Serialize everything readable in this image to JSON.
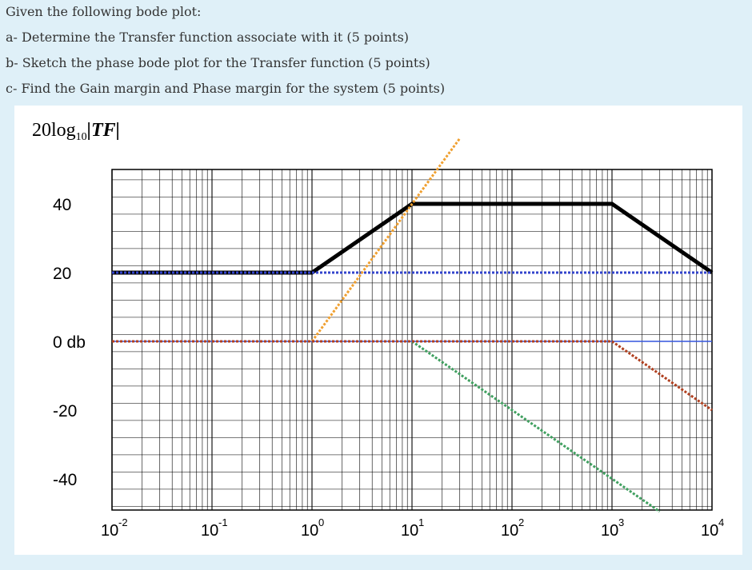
{
  "question": {
    "lines": [
      "Given the following bode plot:",
      "a- Determine the Transfer function associate with it (5 points)",
      "b- Sketch the phase bode plot for the Transfer function (5 points)",
      "c- Find the Gain margin and Phase margin for the system (5 points)"
    ]
  },
  "chart_data": {
    "type": "line",
    "ylabel": {
      "main": "20log",
      "sub": "10",
      "rest": "|TF|"
    },
    "xscale": "log",
    "xlim": [
      0.01,
      10000
    ],
    "ylim": [
      -48,
      50
    ],
    "grid": true,
    "y_ticks": [
      {
        "value": 40,
        "label": "40"
      },
      {
        "value": 20,
        "label": "20"
      },
      {
        "value": 0,
        "label": "0 db"
      },
      {
        "value": -20,
        "label": "-20"
      },
      {
        "value": -40,
        "label": "-40"
      }
    ],
    "x_ticks": [
      {
        "value": 0.01,
        "base": "10",
        "exp": "-2"
      },
      {
        "value": 0.1,
        "base": "10",
        "exp": "-1"
      },
      {
        "value": 1,
        "base": "10",
        "exp": "0"
      },
      {
        "value": 10,
        "base": "10",
        "exp": "1"
      },
      {
        "value": 100,
        "base": "10",
        "exp": "2"
      },
      {
        "value": 1000,
        "base": "10",
        "exp": "3"
      },
      {
        "value": 10000,
        "base": "10",
        "exp": "4"
      }
    ],
    "series": [
      {
        "color": "#000000",
        "style": "solid",
        "width": 5,
        "x": [
          0.01,
          1,
          10,
          1000,
          10000
        ],
        "y": [
          20,
          20,
          40,
          40,
          20
        ]
      },
      {
        "color": "#3344cc",
        "style": "dotted",
        "width": 3,
        "x": [
          0.01,
          10000
        ],
        "y": [
          20,
          20
        ]
      },
      {
        "color": "#3355dd",
        "style": "solid",
        "width": 1.5,
        "x": [
          0.01,
          10000
        ],
        "y": [
          0,
          0
        ]
      },
      {
        "color": "#f0a030",
        "style": "dotted",
        "width": 3,
        "x": [
          0.01,
          1,
          30
        ],
        "y": [
          0,
          0,
          59
        ]
      },
      {
        "color": "#40a060",
        "style": "dotted",
        "width": 3,
        "x": [
          0.01,
          10,
          3000
        ],
        "y": [
          0,
          0,
          -49.5
        ]
      },
      {
        "color": "#b04020",
        "style": "dotted",
        "width": 3,
        "x": [
          0.01,
          1000,
          10000
        ],
        "y": [
          0,
          0,
          -20
        ]
      }
    ]
  }
}
